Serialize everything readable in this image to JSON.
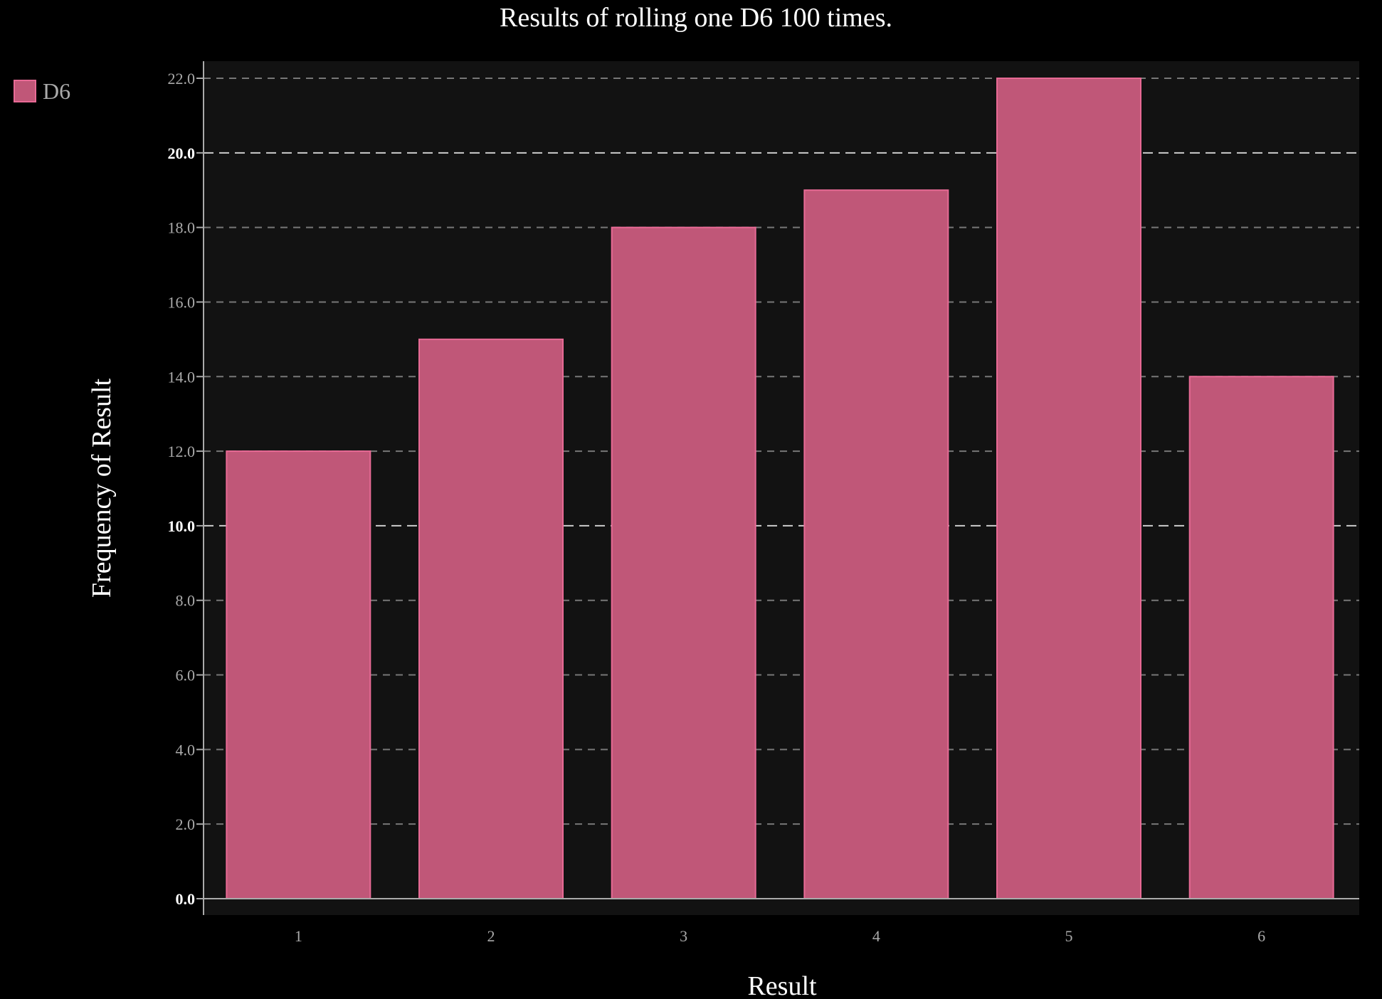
{
  "colors": {
    "page_background": "#000000",
    "plot_background": "#121212",
    "bar_fill": "#c05778",
    "bar_stroke": "#e86a95",
    "grid_major": "#cccccc",
    "grid_minor": "#777777",
    "axis_line": "#aaaaaa",
    "text": "#ffffff",
    "muted_text": "#aaaaaa"
  },
  "chart_data": {
    "type": "bar",
    "title": "Results of rolling one D6 100 times.",
    "xlabel": "Result",
    "ylabel": "Frequency of Result",
    "categories": [
      "1",
      "2",
      "3",
      "4",
      "5",
      "6"
    ],
    "series": [
      {
        "name": "D6",
        "values": [
          12,
          15,
          18,
          19,
          22,
          14
        ]
      }
    ],
    "ylim": [
      0,
      22
    ],
    "y_ticks": [
      0,
      2,
      4,
      6,
      8,
      10,
      12,
      14,
      16,
      18,
      20,
      22
    ],
    "y_tick_labels": [
      "0.0",
      "2.0",
      "4.0",
      "6.0",
      "8.0",
      "10.0",
      "12.0",
      "14.0",
      "16.0",
      "18.0",
      "20.0",
      "22.0"
    ],
    "y_major_ticks": [
      0,
      10,
      20
    ],
    "grid": true,
    "legend_position": "top-left"
  }
}
